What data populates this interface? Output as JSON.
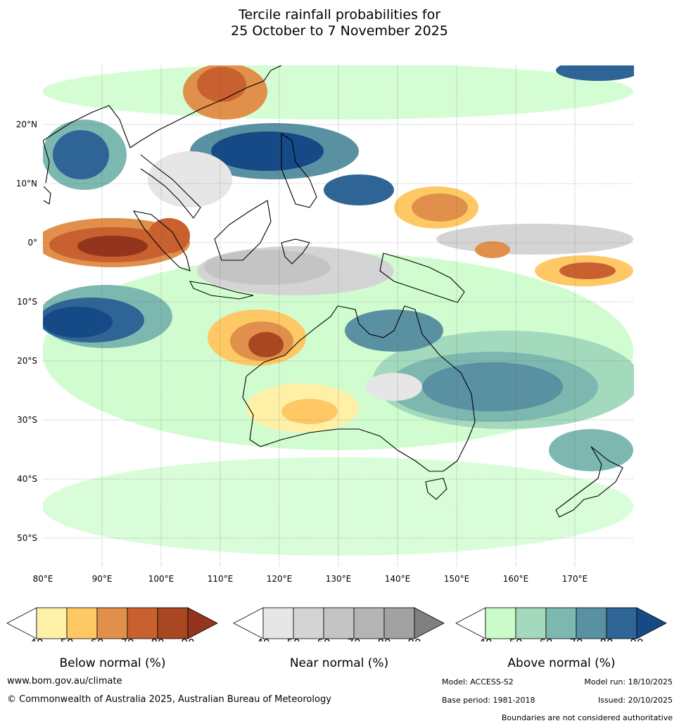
{
  "title": {
    "line1": "Tercile rainfall probabilities for",
    "line2": "25 October to 7 November 2025"
  },
  "map": {
    "lon_range": [
      80,
      180
    ],
    "lat_range": [
      -55,
      30
    ],
    "lon_ticks": [
      {
        "value": 80,
        "label": "80°E"
      },
      {
        "value": 90,
        "label": "90°E"
      },
      {
        "value": 100,
        "label": "100°E"
      },
      {
        "value": 110,
        "label": "110°E"
      },
      {
        "value": 120,
        "label": "120°E"
      },
      {
        "value": 130,
        "label": "130°E"
      },
      {
        "value": 140,
        "label": "140°E"
      },
      {
        "value": 150,
        "label": "150°E"
      },
      {
        "value": 160,
        "label": "160°E"
      },
      {
        "value": 170,
        "label": "170°E"
      }
    ],
    "lat_ticks": [
      {
        "value": 20,
        "label": "20°N"
      },
      {
        "value": 10,
        "label": "10°N"
      },
      {
        "value": 0,
        "label": "0°"
      },
      {
        "value": -10,
        "label": "10°S"
      },
      {
        "value": -20,
        "label": "20°S"
      },
      {
        "value": -30,
        "label": "30°S"
      },
      {
        "value": -40,
        "label": "40°S"
      },
      {
        "value": -50,
        "label": "50°S"
      }
    ]
  },
  "colorbars": {
    "below": {
      "title": "Below normal (%)",
      "ticks": [
        "40",
        "50",
        "60",
        "70",
        "80",
        "90"
      ],
      "colors": [
        "#fff0a8",
        "#fec965",
        "#e0904a",
        "#c8612f",
        "#a94722",
        "#94341c"
      ]
    },
    "near": {
      "title": "Near normal (%)",
      "ticks": [
        "40",
        "50",
        "60",
        "70",
        "80",
        "90"
      ],
      "colors": [
        "#e6e6e6",
        "#d4d4d4",
        "#c4c4c4",
        "#b4b4b4",
        "#a2a2a2",
        "#808080"
      ]
    },
    "above": {
      "title": "Above normal (%)",
      "ticks": [
        "40",
        "50",
        "60",
        "70",
        "80",
        "90"
      ],
      "colors": [
        "#c9fcc8",
        "#a3d9bc",
        "#7db8b0",
        "#5a91a2",
        "#2f6497",
        "#154a86"
      ]
    }
  },
  "footer": {
    "website": "www.bom.gov.au/climate",
    "copyright": "© Commonwealth of Australia 2025, Australian Bureau of Meteorology",
    "model": "Model: ACCESS-S2",
    "model_run": "Model run: 18/10/2025",
    "base_period": "Base period: 1981-2018",
    "issued": "Issued: 20/10/2025",
    "disclaimer": "Boundaries are not considered authoritative"
  }
}
